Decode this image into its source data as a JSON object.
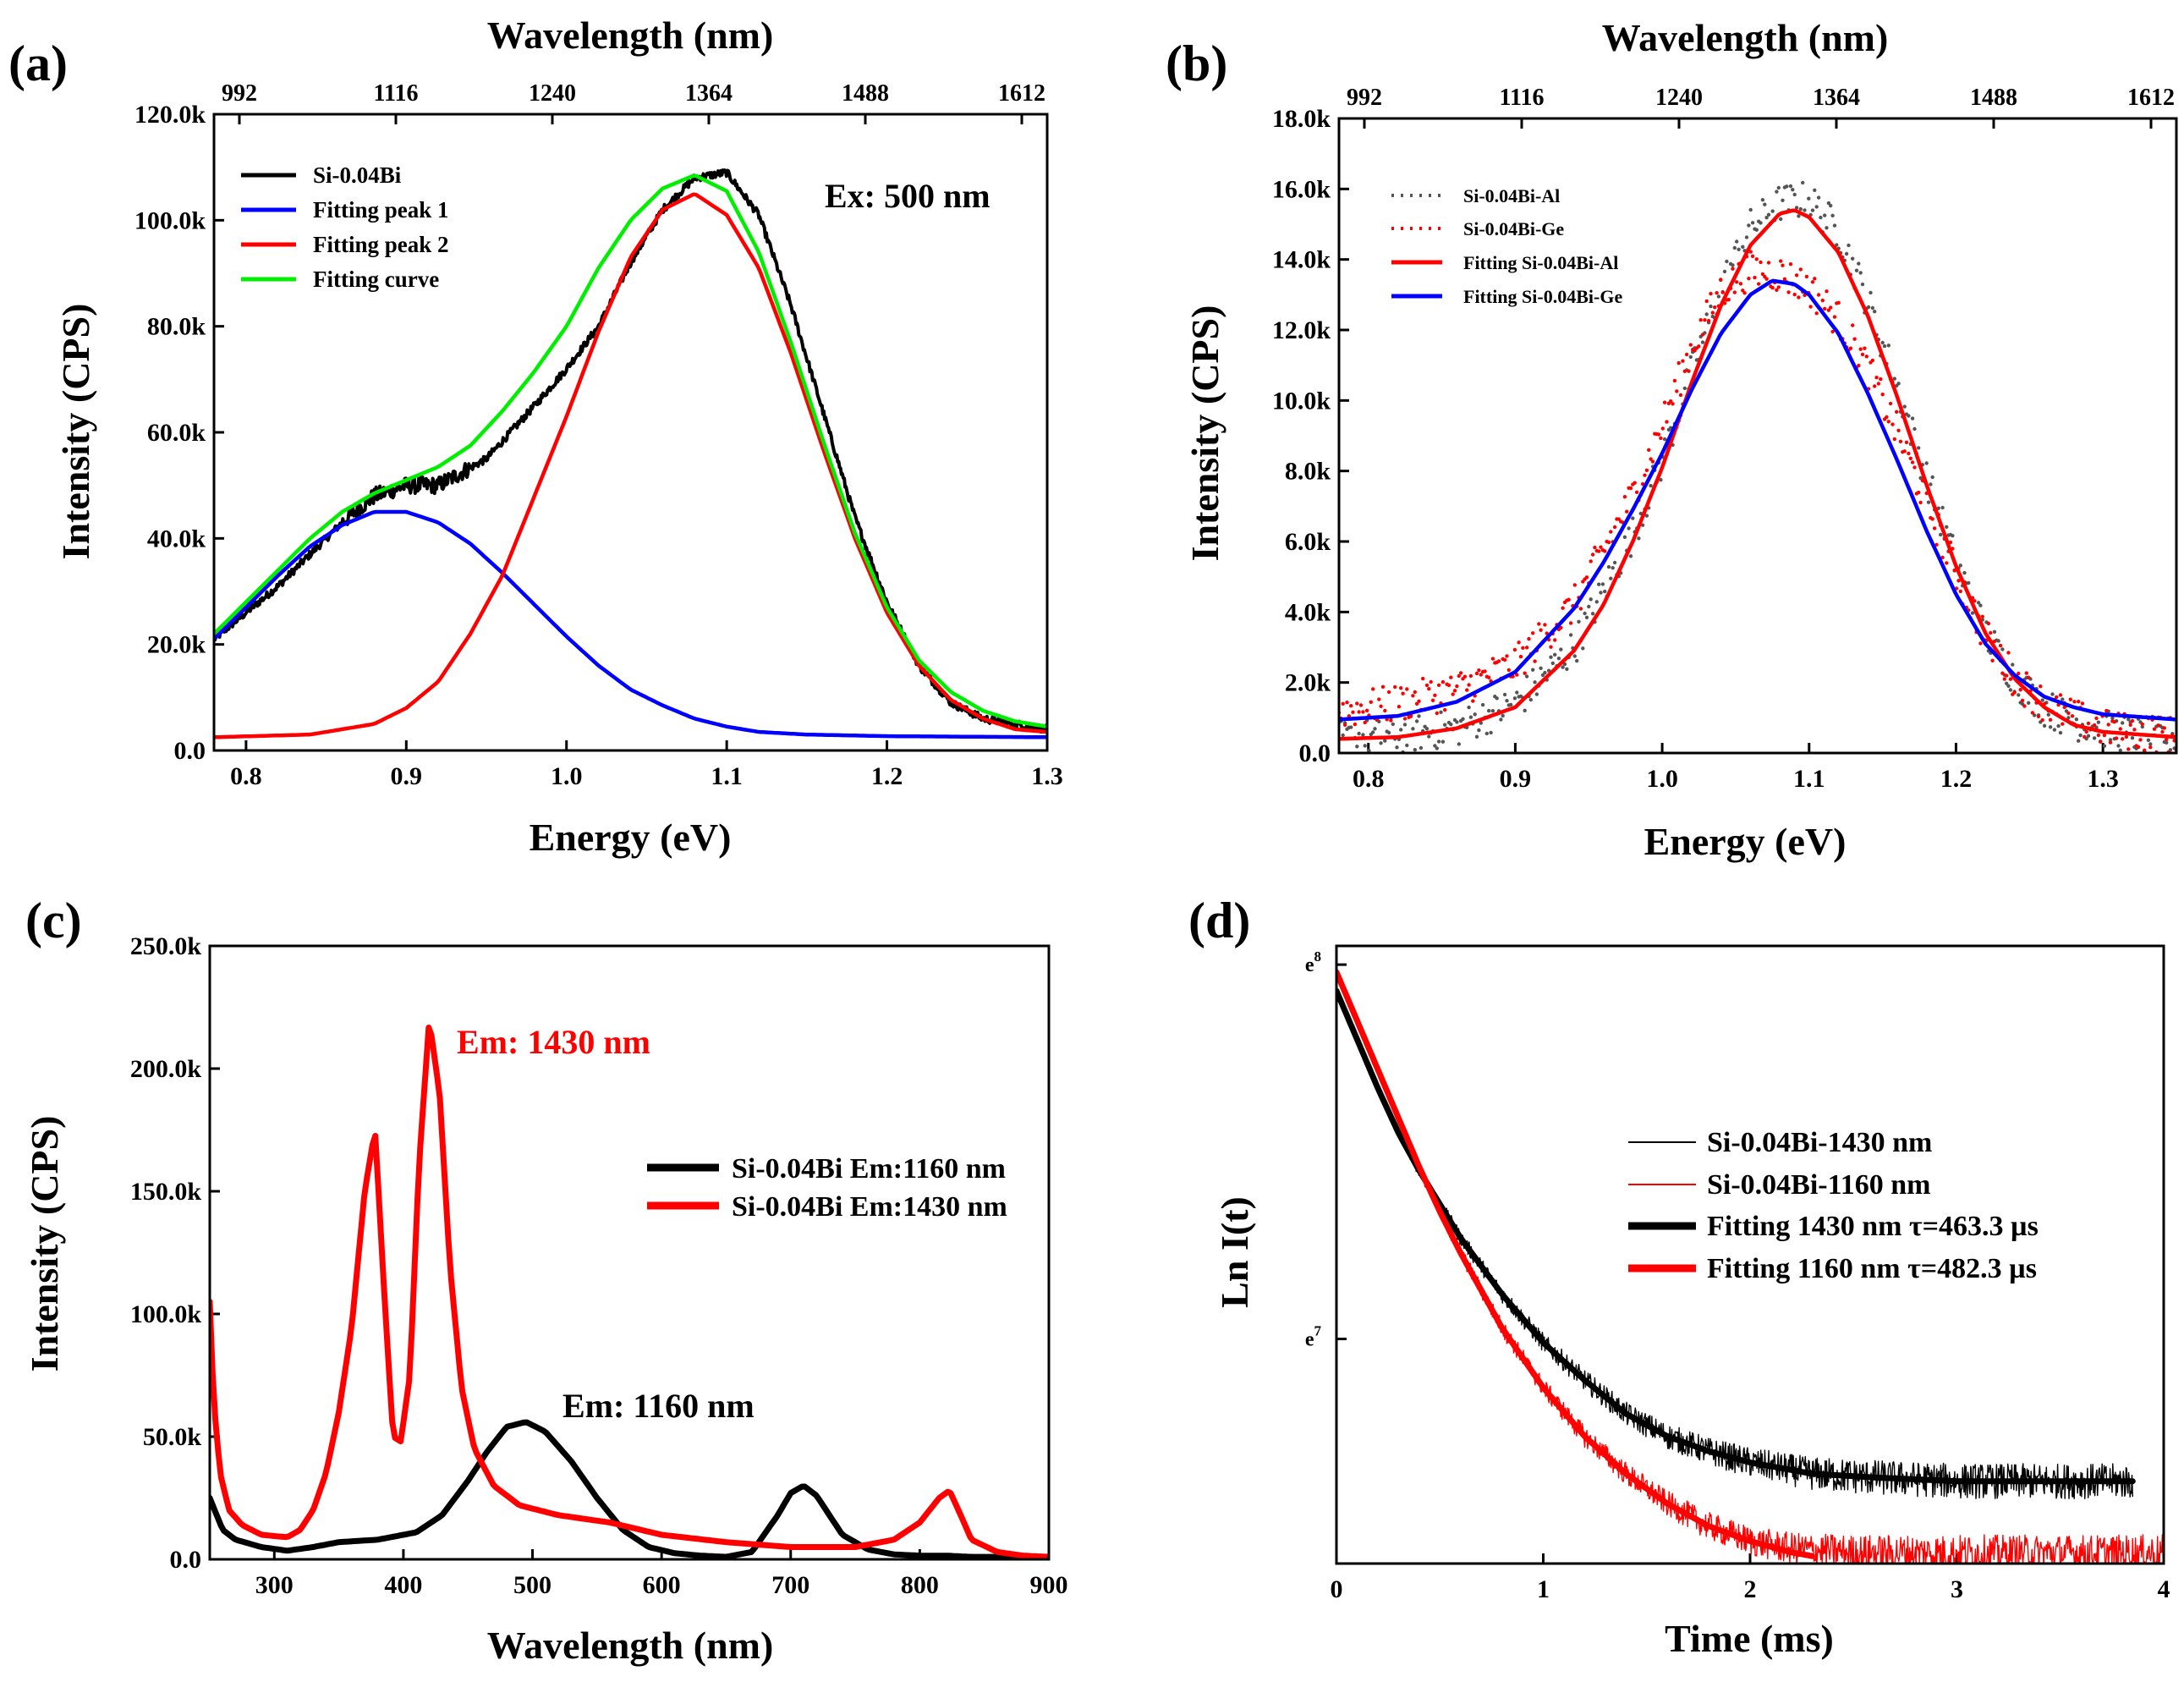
{
  "chart_data": [
    {
      "id": "a",
      "type": "line",
      "panel_label": "(a)",
      "xlabel": "Energy (eV)",
      "ylabel": "Intensity (CPS)",
      "top_xlabel": "Wavelength (nm)",
      "xlim": [
        0.78,
        1.3
      ],
      "ylim": [
        0,
        120000
      ],
      "x_ticks": [
        0.8,
        0.9,
        1.0,
        1.1,
        1.2,
        1.3
      ],
      "x_tick_labels": [
        "0.8",
        "0.9",
        "1.0",
        "1.1",
        "1.2",
        "1.3"
      ],
      "y_ticks": [
        0,
        20000,
        40000,
        60000,
        80000,
        100000,
        120000
      ],
      "y_tick_labels": [
        "0.0",
        "20.0k",
        "40.0k",
        "60.0k",
        "80.0k",
        "100.0k",
        "120.0k"
      ],
      "top_ticks": [
        992,
        1116,
        1240,
        1364,
        1488,
        1612
      ],
      "top_tick_labels": [
        "992",
        "1116",
        "1240",
        "1364",
        "1488",
        "1612"
      ],
      "annotation": "Ex: 500 nm",
      "legend_position": "top-left",
      "series": [
        {
          "name": "Si-0.04Bi",
          "color": "#000000",
          "style": "noisy",
          "x": [
            0.78,
            0.82,
            0.86,
            0.88,
            0.9,
            0.92,
            0.95,
            0.98,
            1.0,
            1.02,
            1.04,
            1.06,
            1.08,
            1.1,
            1.12,
            1.14,
            1.16,
            1.18,
            1.2,
            1.22,
            1.24,
            1.26,
            1.28,
            1.3
          ],
          "y": [
            21000,
            31000,
            43000,
            48000,
            50000,
            50000,
            55000,
            65000,
            72000,
            80000,
            92000,
            102000,
            108000,
            109000,
            101000,
            84000,
            64000,
            44000,
            28000,
            16000,
            9000,
            6000,
            5000,
            4000
          ]
        },
        {
          "name": "Fitting peak 1",
          "color": "#0000ff",
          "x": [
            0.78,
            0.8,
            0.82,
            0.84,
            0.86,
            0.88,
            0.9,
            0.92,
            0.94,
            0.96,
            0.98,
            1.0,
            1.02,
            1.04,
            1.06,
            1.08,
            1.1,
            1.12,
            1.15,
            1.2,
            1.25,
            1.3
          ],
          "y": [
            21000,
            27000,
            33000,
            38500,
            42500,
            45000,
            45000,
            43000,
            39000,
            33500,
            27500,
            21500,
            16000,
            11500,
            8500,
            6000,
            4500,
            3500,
            3000,
            2700,
            2600,
            2500
          ]
        },
        {
          "name": "Fitting peak 2",
          "color": "#ff0000",
          "x": [
            0.78,
            0.84,
            0.88,
            0.9,
            0.92,
            0.94,
            0.96,
            0.98,
            1.0,
            1.02,
            1.04,
            1.06,
            1.08,
            1.1,
            1.12,
            1.14,
            1.16,
            1.18,
            1.2,
            1.22,
            1.24,
            1.26,
            1.28,
            1.3
          ],
          "y": [
            2500,
            3000,
            5000,
            8000,
            13000,
            22000,
            33000,
            48000,
            63000,
            79000,
            93000,
            102000,
            105000,
            101000,
            91000,
            75000,
            57000,
            40000,
            26000,
            16000,
            9500,
            6000,
            4000,
            3500
          ]
        },
        {
          "name": "Fitting curve",
          "color": "#00ee00",
          "x": [
            0.78,
            0.8,
            0.82,
            0.84,
            0.86,
            0.88,
            0.9,
            0.92,
            0.94,
            0.96,
            0.98,
            1.0,
            1.02,
            1.04,
            1.06,
            1.08,
            1.1,
            1.12,
            1.14,
            1.16,
            1.18,
            1.2,
            1.22,
            1.24,
            1.26,
            1.28,
            1.3
          ],
          "y": [
            22000,
            28000,
            34000,
            40000,
            45000,
            48500,
            51000,
            53500,
            57500,
            64000,
            71500,
            80000,
            91000,
            100000,
            106000,
            108500,
            105500,
            94000,
            77000,
            58500,
            41000,
            27000,
            17000,
            11000,
            7500,
            5500,
            4500
          ]
        }
      ]
    },
    {
      "id": "b",
      "type": "line",
      "panel_label": "(b)",
      "xlabel": "Energy (eV)",
      "ylabel": "Intensity (CPS)",
      "top_xlabel": "Wavelength (nm)",
      "xlim": [
        0.78,
        1.35
      ],
      "ylim": [
        0,
        18000
      ],
      "x_ticks": [
        0.8,
        0.9,
        1.0,
        1.1,
        1.2,
        1.3
      ],
      "x_tick_labels": [
        "0.8",
        "0.9",
        "1.0",
        "1.1",
        "1.2",
        "1.3"
      ],
      "y_ticks": [
        0,
        2000,
        4000,
        6000,
        8000,
        10000,
        12000,
        14000,
        16000,
        18000
      ],
      "y_tick_labels": [
        "0.0",
        "2.0k",
        "4.0k",
        "6.0k",
        "8.0k",
        "10.0k",
        "12.0k",
        "14.0k",
        "16.0k",
        "18.0k"
      ],
      "top_ticks": [
        992,
        1116,
        1240,
        1364,
        1488,
        1612
      ],
      "top_tick_labels": [
        "992",
        "1116",
        "1240",
        "1364",
        "1488",
        "1612"
      ],
      "legend_position": "top-left",
      "series": [
        {
          "name": "Si-0.04Bi-Al",
          "color": "#555555",
          "style": "dots",
          "x": [
            0.78,
            0.82,
            0.86,
            0.9,
            0.94,
            0.98,
            1.0,
            1.02,
            1.04,
            1.06,
            1.08,
            1.1,
            1.12,
            1.14,
            1.16,
            1.18,
            1.2,
            1.22,
            1.24,
            1.26,
            1.28,
            1.3,
            1.32,
            1.35
          ],
          "y": [
            400,
            500,
            700,
            1400,
            3000,
            6200,
            8300,
            10800,
            13200,
            14900,
            15600,
            15700,
            14800,
            12800,
            10400,
            7800,
            5400,
            3400,
            2100,
            1300,
            900,
            700,
            500,
            500
          ]
        },
        {
          "name": "Si-0.04Bi-Ge",
          "color": "#ff0000",
          "style": "dots",
          "x": [
            0.78,
            0.82,
            0.86,
            0.9,
            0.94,
            0.98,
            1.0,
            1.02,
            1.04,
            1.06,
            1.08,
            1.1,
            1.12,
            1.14,
            1.16,
            1.18,
            1.2,
            1.22,
            1.24,
            1.26,
            1.28,
            1.3,
            1.32,
            1.35
          ],
          "y": [
            1200,
            1400,
            1800,
            2500,
            4200,
            7300,
            9300,
            11500,
            13100,
            13700,
            13600,
            13200,
            12300,
            10900,
            9100,
            7100,
            5100,
            3300,
            2100,
            1400,
            1000,
            700,
            600,
            500
          ]
        },
        {
          "name": "Fitting Si-0.04Bi-Al",
          "color": "#ff0000",
          "x": [
            0.78,
            0.82,
            0.86,
            0.9,
            0.94,
            0.96,
            0.98,
            1.0,
            1.02,
            1.04,
            1.06,
            1.08,
            1.09,
            1.1,
            1.12,
            1.14,
            1.16,
            1.18,
            1.2,
            1.22,
            1.24,
            1.26,
            1.28,
            1.3,
            1.35
          ],
          "y": [
            400,
            450,
            700,
            1300,
            2900,
            4200,
            6000,
            8100,
            10500,
            12700,
            14400,
            15300,
            15400,
            15200,
            14200,
            12400,
            10100,
            7600,
            5300,
            3400,
            2100,
            1300,
            800,
            600,
            450
          ]
        },
        {
          "name": "Fitting Si-0.04Bi-Ge",
          "color": "#0000ff",
          "x": [
            0.78,
            0.82,
            0.86,
            0.9,
            0.94,
            0.96,
            0.98,
            1.0,
            1.02,
            1.04,
            1.06,
            1.075,
            1.09,
            1.1,
            1.12,
            1.14,
            1.16,
            1.18,
            1.2,
            1.22,
            1.24,
            1.26,
            1.28,
            1.3,
            1.35
          ],
          "y": [
            950,
            1050,
            1450,
            2300,
            4100,
            5400,
            6900,
            8500,
            10300,
            11900,
            13000,
            13400,
            13300,
            13000,
            11900,
            10200,
            8300,
            6300,
            4500,
            3100,
            2200,
            1600,
            1300,
            1100,
            950
          ]
        }
      ]
    },
    {
      "id": "c",
      "type": "line",
      "panel_label": "(c)",
      "xlabel": "Wavelength (nm)",
      "ylabel": "Intensity (CPS)",
      "xlim": [
        250,
        900
      ],
      "ylim": [
        0,
        250000
      ],
      "x_ticks": [
        300,
        400,
        500,
        600,
        700,
        800,
        900
      ],
      "x_tick_labels": [
        "300",
        "400",
        "500",
        "600",
        "700",
        "800",
        "900"
      ],
      "y_ticks": [
        0,
        50000,
        100000,
        150000,
        200000,
        250000
      ],
      "y_tick_labels": [
        "0.0",
        "50.0k",
        "100.0k",
        "150.0k",
        "200.0k",
        "250.0k"
      ],
      "annotations": [
        "Em: 1430 nm",
        "Em: 1160 nm"
      ],
      "legend_position": "middle-right",
      "series": [
        {
          "name": "Si-0.04Bi Em:1160 nm",
          "color": "#000000",
          "x": [
            250,
            260,
            270,
            290,
            310,
            330,
            350,
            380,
            410,
            430,
            450,
            465,
            480,
            495,
            510,
            530,
            550,
            570,
            590,
            610,
            630,
            650,
            670,
            690,
            700,
            710,
            720,
            740,
            760,
            780,
            800,
            820,
            840,
            860,
            880,
            900
          ],
          "y": [
            25000,
            12000,
            8000,
            5000,
            3500,
            5000,
            7000,
            8000,
            11000,
            18000,
            32000,
            44000,
            54000,
            56000,
            52000,
            40000,
            25000,
            12000,
            5000,
            2500,
            1500,
            1000,
            3000,
            18000,
            27000,
            30000,
            26000,
            10000,
            4000,
            2000,
            1500,
            1500,
            1000,
            1000,
            500,
            500
          ]
        },
        {
          "name": "Si-0.04Bi Em:1430 nm",
          "color": "#ff0000",
          "x": [
            250,
            253,
            258,
            265,
            275,
            290,
            310,
            320,
            330,
            340,
            350,
            360,
            370,
            378,
            385,
            392,
            398,
            405,
            412,
            420,
            428,
            436,
            445,
            455,
            470,
            490,
            520,
            560,
            600,
            650,
            700,
            750,
            780,
            800,
            815,
            823,
            830,
            840,
            860,
            880,
            900
          ],
          "y": [
            105000,
            65000,
            35000,
            20000,
            14000,
            10000,
            9000,
            12000,
            20000,
            35000,
            60000,
            95000,
            150000,
            175000,
            110000,
            50000,
            48000,
            75000,
            160000,
            220000,
            190000,
            120000,
            70000,
            45000,
            30000,
            22000,
            18000,
            15000,
            10000,
            7000,
            5000,
            5000,
            8000,
            15000,
            25000,
            28000,
            20000,
            8000,
            3000,
            1500,
            1000
          ]
        }
      ]
    },
    {
      "id": "d",
      "type": "line",
      "panel_label": "(d)",
      "xlabel": "Time (ms)",
      "ylabel": "Ln I(t)",
      "xlim": [
        0,
        4
      ],
      "ylim": [
        6.4,
        8.05
      ],
      "x_ticks": [
        0,
        1,
        2,
        3,
        4
      ],
      "x_tick_labels": [
        "0",
        "1",
        "2",
        "3",
        "4"
      ],
      "y_tick_values": [
        7,
        8
      ],
      "y_tick_base": "e",
      "y_tick_exponents": [
        "7",
        "8"
      ],
      "legend_position": "middle-right",
      "series": [
        {
          "name": "Si-0.04Bi-1430 nm",
          "color": "#000000",
          "style": "noisy-thin",
          "x": [
            0,
            0.1,
            0.2,
            0.3,
            0.4,
            0.5,
            0.6,
            0.8,
            1.0,
            1.2,
            1.4,
            1.6,
            1.8,
            2.0,
            2.3,
            2.6,
            3.0,
            3.4,
            3.85
          ],
          "y": [
            7.93,
            7.8,
            7.67,
            7.55,
            7.45,
            7.36,
            7.27,
            7.12,
            6.99,
            6.89,
            6.8,
            6.74,
            6.7,
            6.67,
            6.64,
            6.63,
            6.62,
            6.62,
            6.62
          ]
        },
        {
          "name": "Si-0.04Bi-1160 nm",
          "color": "#ff0000",
          "style": "noisy-thin",
          "x": [
            0,
            0.1,
            0.2,
            0.3,
            0.4,
            0.5,
            0.6,
            0.8,
            1.0,
            1.2,
            1.4,
            1.6,
            1.8,
            2.0,
            2.2,
            2.5,
            3.0,
            3.5,
            4.0
          ],
          "y": [
            7.98,
            7.85,
            7.72,
            7.59,
            7.46,
            7.34,
            7.23,
            7.03,
            6.87,
            6.74,
            6.64,
            6.56,
            6.5,
            6.46,
            6.44,
            6.43,
            6.43,
            6.43,
            6.43
          ]
        },
        {
          "name": "Fitting 1430 nm τ=463.3 µs",
          "color": "#000000",
          "style": "thick",
          "x": [
            0,
            0.1,
            0.2,
            0.3,
            0.4,
            0.5,
            0.6,
            0.8,
            1.0,
            1.2,
            1.4,
            1.6,
            1.8,
            2.0,
            2.3,
            2.6,
            3.0,
            3.4,
            3.85
          ],
          "y": [
            7.93,
            7.8,
            7.67,
            7.55,
            7.45,
            7.36,
            7.27,
            7.12,
            6.99,
            6.89,
            6.8,
            6.74,
            6.7,
            6.67,
            6.64,
            6.63,
            6.62,
            6.62,
            6.62
          ]
        },
        {
          "name": "Fitting 1160 nm τ=482.3 µs",
          "color": "#ff0000",
          "style": "thick",
          "x": [
            0,
            0.1,
            0.2,
            0.3,
            0.4,
            0.5,
            0.6,
            0.8,
            1.0,
            1.2,
            1.4,
            1.6,
            1.8,
            2.0,
            2.2,
            2.3
          ],
          "y": [
            7.98,
            7.85,
            7.72,
            7.59,
            7.46,
            7.34,
            7.23,
            7.03,
            6.87,
            6.74,
            6.64,
            6.56,
            6.5,
            6.46,
            6.43,
            6.42
          ]
        }
      ]
    }
  ]
}
